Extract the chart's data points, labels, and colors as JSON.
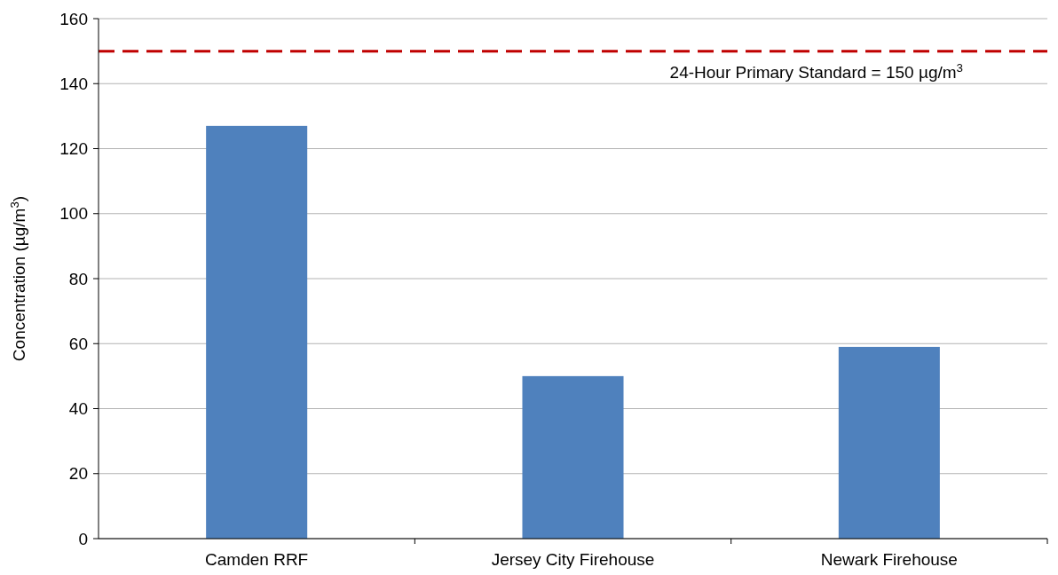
{
  "chart_data": {
    "type": "bar",
    "ylabel": "Concentration (µg/m$^{3}$)",
    "categories": [
      "Camden RRF",
      "Jersey City Firehouse",
      "Newark Firehouse"
    ],
    "values": [
      127,
      50,
      59
    ],
    "color": "#4f81bd",
    "ylim": [
      0,
      160
    ],
    "yticks": [
      0,
      20,
      40,
      60,
      80,
      100,
      120,
      140,
      160
    ],
    "grid": "y",
    "ref_lines": [
      {
        "axis": "y",
        "value": 150,
        "label": "24-Hour Primary Standard = 150 µg/m$^{3}$",
        "color": "#c00000",
        "line_style": "dashed"
      }
    ]
  }
}
